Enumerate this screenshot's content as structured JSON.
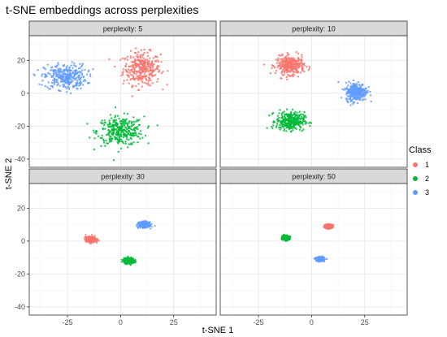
{
  "chart_data": {
    "type": "scatter",
    "title": "t-SNE embeddings across perplexities",
    "xlabel": "t-SNE 1",
    "ylabel": "t-SNE 2",
    "xlim": [
      -43,
      45
    ],
    "ylim": [
      -45,
      35
    ],
    "x_ticks": [
      -25,
      0,
      25
    ],
    "y_ticks": [
      -40,
      -20,
      0,
      20
    ],
    "grid": true,
    "legend": {
      "title": "Class",
      "position": "right",
      "entries": [
        {
          "label": "1",
          "color": "#F8766D"
        },
        {
          "label": "2",
          "color": "#00BA38"
        },
        {
          "label": "3",
          "color": "#619CFF"
        }
      ]
    },
    "panels": [
      {
        "label": "perplexity: 5",
        "clusters": [
          {
            "class": "1",
            "center": [
              10,
              15
            ],
            "spread": [
              8,
              9
            ]
          },
          {
            "class": "2",
            "center": [
              0,
              -23
            ],
            "spread": [
              10,
              8
            ]
          },
          {
            "class": "3",
            "center": [
              -26,
              10
            ],
            "spread": [
              9,
              7
            ]
          }
        ]
      },
      {
        "label": "perplexity: 10",
        "clusters": [
          {
            "class": "1",
            "center": [
              -10,
              17
            ],
            "spread": [
              6,
              5
            ]
          },
          {
            "class": "2",
            "center": [
              -10,
              -17
            ],
            "spread": [
              6,
              5
            ]
          },
          {
            "class": "3",
            "center": [
              21,
              1
            ],
            "spread": [
              4.5,
              5
            ]
          }
        ]
      },
      {
        "label": "perplexity: 30",
        "clusters": [
          {
            "class": "1",
            "center": [
              -14,
              1
            ],
            "spread": [
              2.2,
              1.5
            ]
          },
          {
            "class": "2",
            "center": [
              4,
              -12
            ],
            "spread": [
              2.2,
              1.5
            ]
          },
          {
            "class": "3",
            "center": [
              11,
              10
            ],
            "spread": [
              2.2,
              1.5
            ]
          }
        ]
      },
      {
        "label": "perplexity: 50",
        "clusters": [
          {
            "class": "1",
            "center": [
              8,
              9
            ],
            "spread": [
              1.6,
              1.1
            ]
          },
          {
            "class": "2",
            "center": [
              -12,
              2
            ],
            "spread": [
              1.6,
              1.1
            ]
          },
          {
            "class": "3",
            "center": [
              4,
              -11
            ],
            "spread": [
              1.6,
              1.1
            ]
          }
        ]
      }
    ]
  }
}
